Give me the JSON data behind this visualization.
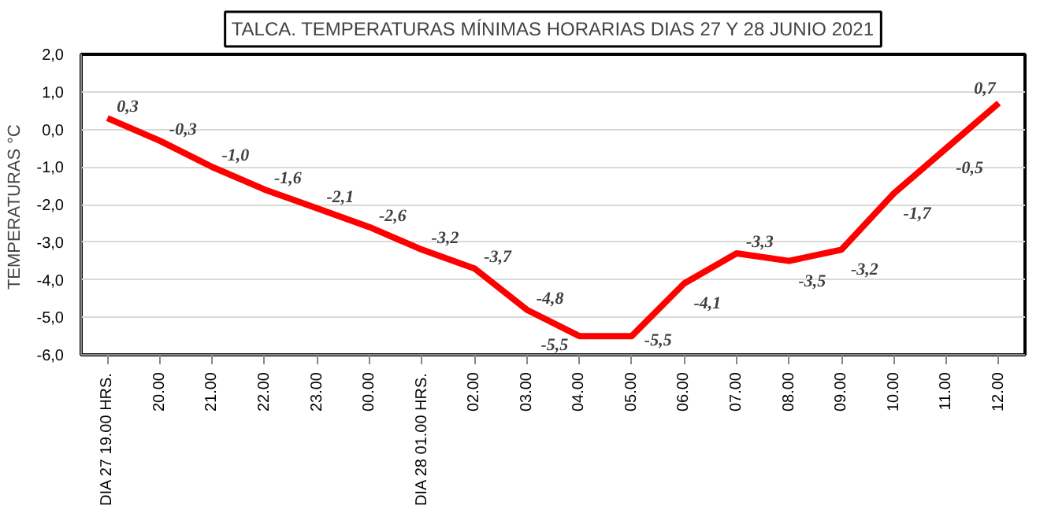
{
  "chart_data": {
    "type": "line",
    "title": "TALCA. TEMPERATURAS MÍNIMAS HORARIAS DIAS 27 Y 28 JUNIO 2021",
    "ylabel": "TEMPERATURAS  °C",
    "categories": [
      "DIA 27 19.00 HRS.",
      "20.00",
      "21.00",
      "22.00",
      "23.00",
      "00.00",
      "DIA 28 01.00 HRS.",
      "02.00",
      "03.00",
      "04.00",
      "05.00",
      "06.00",
      "07.00",
      "08.00",
      "09.00",
      "10.00",
      "11.00",
      "12.00"
    ],
    "series": [
      {
        "color": "#ff0000",
        "values": [
          0.3,
          -0.3,
          -1.0,
          -1.6,
          -2.1,
          -2.6,
          -3.2,
          -3.7,
          -4.8,
          -5.5,
          -5.5,
          -4.1,
          -3.3,
          -3.5,
          -3.2,
          -1.7,
          -0.5,
          0.7
        ],
        "value_labels": [
          "0,3",
          "-0,3",
          "-1,0",
          "-1,6",
          "-2,1",
          "-2,6",
          "-3,2",
          "-3,7",
          "-4,8",
          "-5,5",
          "-5,5",
          "-4,1",
          "-3,3",
          "-3,5",
          "-3,2",
          "-1,7",
          "-0,5",
          "0,7"
        ]
      }
    ],
    "ylim": [
      -6.0,
      2.0
    ],
    "yticks": [
      {
        "value": -6.0,
        "label": "-6,0"
      },
      {
        "value": -5.0,
        "label": "-5,0"
      },
      {
        "value": -4.0,
        "label": "-4,0"
      },
      {
        "value": -3.0,
        "label": "-3,0"
      },
      {
        "value": -2.0,
        "label": "-2,0"
      },
      {
        "value": -1.0,
        "label": "-1,0"
      },
      {
        "value": 0.0,
        "label": "0,0"
      },
      {
        "value": 1.0,
        "label": "1,0"
      },
      {
        "value": 2.0,
        "label": "2,0"
      }
    ],
    "grid": "y",
    "marker": "none",
    "line_style": "solid"
  }
}
